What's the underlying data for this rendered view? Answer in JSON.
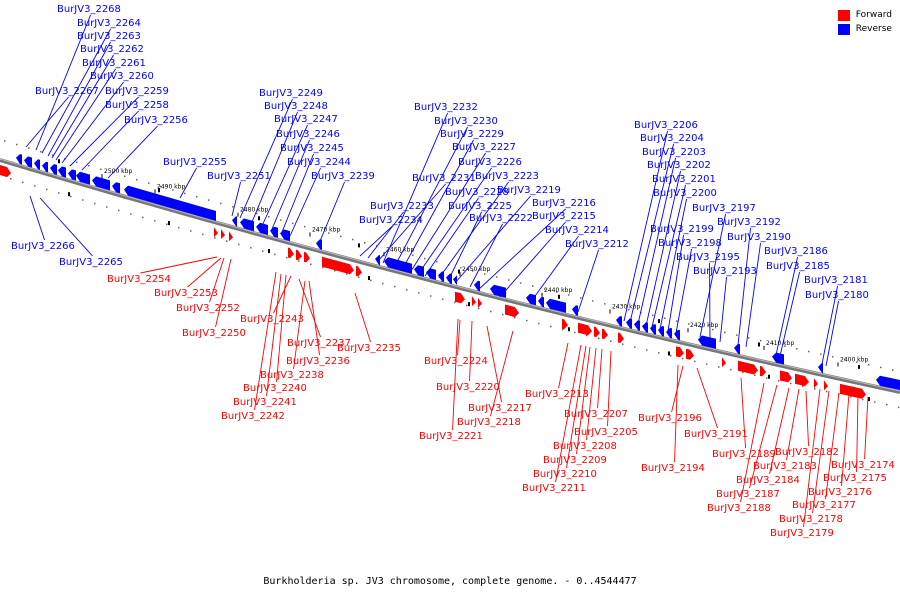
{
  "legend": {
    "forward_label": "Forward",
    "reverse_label": "Reverse",
    "forward_color": "#ff0000",
    "reverse_color": "#0000ff"
  },
  "caption": "Burkholderia sp. JV3 chromosome, complete genome. - 0..4544477",
  "kbp_ticks": [
    "2500 kbp",
    "2490 kbp",
    "2480 kbp",
    "2470 kbp",
    "2460 kbp",
    "2450 kbp",
    "2440 kbp",
    "2430 kbp",
    "2420 kbp",
    "2410 kbp",
    "2400 kbp"
  ],
  "reverse_genes": [
    "BurJV3_2268",
    "BurJV3_2264",
    "BurJV3_2263",
    "BurJV3_2262",
    "BurJV3_2261",
    "BurJV3_2260",
    "BurJV3_2267",
    "BurJV3_2259",
    "BurJV3_2258",
    "BurJV3_2256",
    "BurJV3_2255",
    "BurJV3_2249",
    "BurJV3_2248",
    "BurJV3_2247",
    "BurJV3_2246",
    "BurJV3_2245",
    "BurJV3_2244",
    "BurJV3_2251",
    "BurJV3_2239",
    "BurJV3_2232",
    "BurJV3_2230",
    "BurJV3_2229",
    "BurJV3_2227",
    "BurJV3_2226",
    "BurJV3_2231",
    "BurJV3_2223",
    "BurJV3_2228",
    "BurJV3_2233",
    "BurJV3_2219",
    "BurJV3_2225",
    "BurJV3_2216",
    "BurJV3_2234",
    "BurJV3_2222",
    "BurJV3_2215",
    "BurJV3_2214",
    "BurJV3_2212",
    "BurJV3_2206",
    "BurJV3_2204",
    "BurJV3_2203",
    "BurJV3_2202",
    "BurJV3_2201",
    "BurJV3_2200",
    "BurJV3_2197",
    "BurJV3_2199",
    "BurJV3_2192",
    "BurJV3_2198",
    "BurJV3_2190",
    "BurJV3_2186",
    "BurJV3_2195",
    "BurJV3_2193",
    "BurJV3_2185",
    "BurJV3_2181",
    "BurJV3_2180",
    "BurJV3_2266",
    "BurJV3_2265"
  ],
  "forward_genes": [
    "BurJV3_2254",
    "BurJV3_2253",
    "BurJV3_2252",
    "BurJV3_2250",
    "BurJV3_2243",
    "BurJV3_2237",
    "BurJV3_2236",
    "BurJV3_2235",
    "BurJV3_2238",
    "BurJV3_2240",
    "BurJV3_2241",
    "BurJV3_2242",
    "BurJV3_2224",
    "BurJV3_2220",
    "BurJV3_2217",
    "BurJV3_2218",
    "BurJV3_2221",
    "BurJV3_2213",
    "BurJV3_2207",
    "BurJV3_2205",
    "BurJV3_2208",
    "BurJV3_2209",
    "BurJV3_2210",
    "BurJV3_2211",
    "BurJV3_2196",
    "BurJV3_2191",
    "BurJV3_2194",
    "BurJV3_2189",
    "BurJV3_2182",
    "BurJV3_2183",
    "BurJV3_2184",
    "BurJV3_2187",
    "BurJV3_2188",
    "BurJV3_2174",
    "BurJV3_2175",
    "BurJV3_2176",
    "BurJV3_2177",
    "BurJV3_2178",
    "BurJV3_2179"
  ]
}
